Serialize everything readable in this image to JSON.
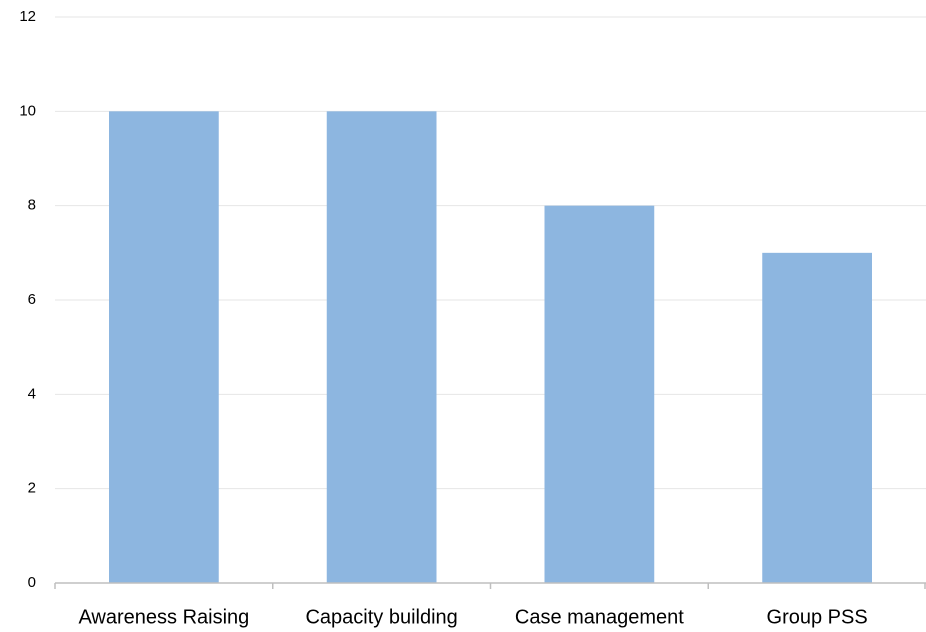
{
  "chart_data": {
    "type": "bar",
    "categories": [
      "Awareness Raising",
      "Capacity building",
      "Case management",
      "Group PSS"
    ],
    "values": [
      10,
      10,
      8,
      7
    ],
    "color": "#8db6e0",
    "ylim": [
      0,
      12
    ],
    "yticks": [
      0,
      2,
      4,
      6,
      8,
      10,
      12
    ],
    "grid": true
  }
}
